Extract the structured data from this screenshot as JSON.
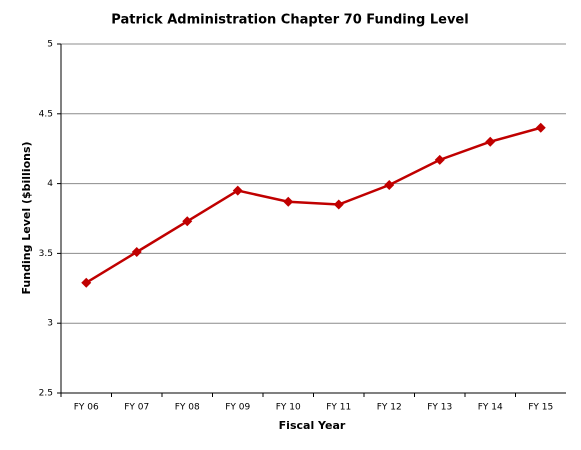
{
  "chart_data": {
    "type": "line",
    "title": "Patrick Administration Chapter 70 Funding Level",
    "x_label": "Fiscal  Year",
    "y_label": "Funding Level ($billions)",
    "categories": [
      "FY 06",
      "FY 07",
      "FY 08",
      "FY 09",
      "FY 10",
      "FY 11",
      "FY 12",
      "FY 13",
      "FY 14",
      "FY 15"
    ],
    "values": [
      3.29,
      3.51,
      3.73,
      3.95,
      3.87,
      3.85,
      3.99,
      4.17,
      4.3,
      4.4
    ],
    "color": "#c00000",
    "ylim": [
      2.5,
      5
    ],
    "yticks": [
      2.5,
      3,
      3.5,
      4,
      4.5,
      5
    ],
    "grid": true
  }
}
